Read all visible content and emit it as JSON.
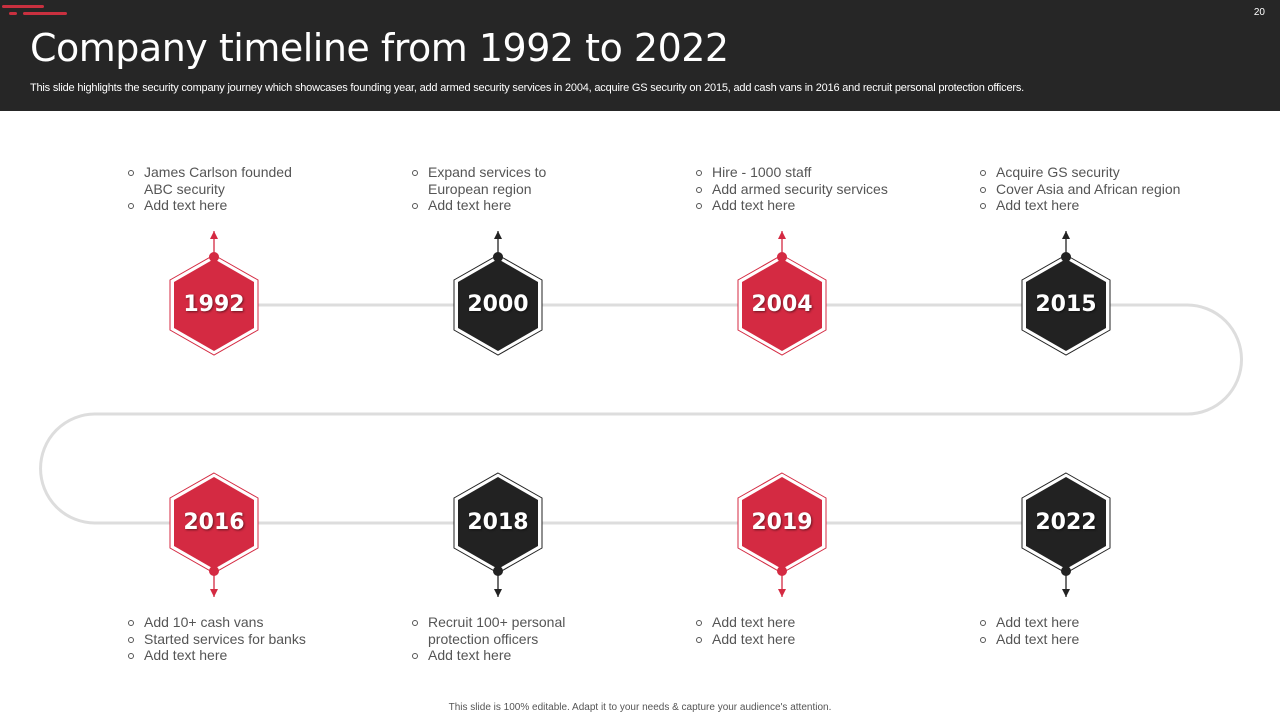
{
  "header": {
    "title": "Company timeline from 1992 to 2022",
    "subtitle": "This slide highlights the security company journey which showcases founding year, add armed security services in 2004, acquire GS security on 2015, add cash vans in 2016 and recruit personal protection officers.",
    "page_number": "20"
  },
  "colors": {
    "red": "#d42a42",
    "black": "#222222",
    "line": "#dddddd"
  },
  "milestones": [
    {
      "year": "1992",
      "color": "red",
      "points": [
        "James Carlson founded ABC security",
        "Add text here"
      ]
    },
    {
      "year": "2000",
      "color": "black",
      "points": [
        "Expand services to European region",
        "Add text here"
      ]
    },
    {
      "year": "2004",
      "color": "red",
      "points": [
        "Hire - 1000 staff",
        "Add armed security services",
        "Add text here"
      ]
    },
    {
      "year": "2015",
      "color": "black",
      "points": [
        "Acquire GS security",
        "Cover Asia and African region",
        "Add text here"
      ]
    },
    {
      "year": "2016",
      "color": "red",
      "points": [
        "Add 10+ cash vans",
        "Started services for banks",
        "Add text here"
      ]
    },
    {
      "year": "2018",
      "color": "black",
      "points": [
        "Recruit 100+ personal protection officers",
        "Add text here"
      ]
    },
    {
      "year": "2019",
      "color": "red",
      "points": [
        "Add text here",
        "Add text here"
      ]
    },
    {
      "year": "2022",
      "color": "black",
      "points": [
        "Add text here",
        "Add text here"
      ]
    }
  ],
  "footer": "This slide is 100% editable. Adapt it to your needs & capture your audience's attention."
}
